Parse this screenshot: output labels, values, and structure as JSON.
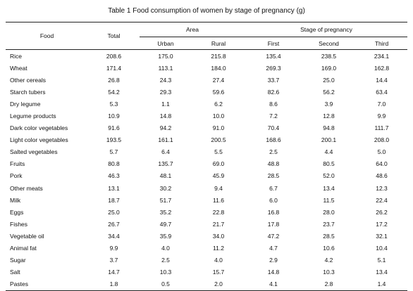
{
  "title": "Table 1   Food consumption of women by stage of pregnancy (g)",
  "table": {
    "headers": {
      "food": "Food",
      "total": "Total",
      "area": "Area",
      "stage": "Stage of pregnancy",
      "urban": "Urban",
      "rural": "Rural",
      "first": "First",
      "second": "Second",
      "third": "Third"
    },
    "rows": [
      [
        "Rice",
        "208.6",
        "175.0",
        "215.8",
        "135.4",
        "238.5",
        "234.1"
      ],
      [
        "Wheat",
        "171.4",
        "113.1",
        "184.0",
        "269.3",
        "169.0",
        "162.8"
      ],
      [
        "Other cereals",
        "26.8",
        "24.3",
        "27.4",
        "33.7",
        "25.0",
        "14.4"
      ],
      [
        "Starch tubers",
        "54.2",
        "29.3",
        "59.6",
        "82.6",
        "56.2",
        "63.4"
      ],
      [
        "Dry legume",
        "5.3",
        "1.1",
        "6.2",
        "8.6",
        "3.9",
        "7.0"
      ],
      [
        "Legume products",
        "10.9",
        "14.8",
        "10.0",
        "7.2",
        "12.8",
        "9.9"
      ],
      [
        "Dark color vegetables",
        "91.6",
        "94.2",
        "91.0",
        "70.4",
        "94.8",
        "111.7"
      ],
      [
        "Light color vegetables",
        "193.5",
        "161.1",
        "200.5",
        "168.6",
        "200.1",
        "208.0"
      ],
      [
        "Salted vegetables",
        "5.7",
        "6.4",
        "5.5",
        "2.5",
        "4.4",
        "5.0"
      ],
      [
        "Fruits",
        "80.8",
        "135.7",
        "69.0",
        "48.8",
        "80.5",
        "64.0"
      ],
      [
        "Pork",
        "46.3",
        "48.1",
        "45.9",
        "28.5",
        "52.0",
        "48.6"
      ],
      [
        "Other meats",
        "13.1",
        "30.2",
        "9.4",
        "6.7",
        "13.4",
        "12.3"
      ],
      [
        "Milk",
        "18.7",
        "51.7",
        "11.6",
        "6.0",
        "11.5",
        "22.4"
      ],
      [
        "Eggs",
        "25.0",
        "35.2",
        "22.8",
        "16.8",
        "28.0",
        "26.2"
      ],
      [
        "Fishes",
        "26.7",
        "49.7",
        "21.7",
        "17.8",
        "23.7",
        "17.2"
      ],
      [
        "Vegetable oil",
        "34.4",
        "35.9",
        "34.0",
        "47.2",
        "28.5",
        "32.1"
      ],
      [
        "Animal fat",
        "9.9",
        "4.0",
        "11.2",
        "4.7",
        "10.6",
        "10.4"
      ],
      [
        "Sugar",
        "3.7",
        "2.5",
        "4.0",
        "2.9",
        "4.2",
        "5.1"
      ],
      [
        "Salt",
        "14.7",
        "10.3",
        "15.7",
        "14.8",
        "10.3",
        "13.4"
      ],
      [
        "Pastes",
        "1.8",
        "0.5",
        "2.0",
        "4.1",
        "2.8",
        "1.4"
      ]
    ]
  }
}
